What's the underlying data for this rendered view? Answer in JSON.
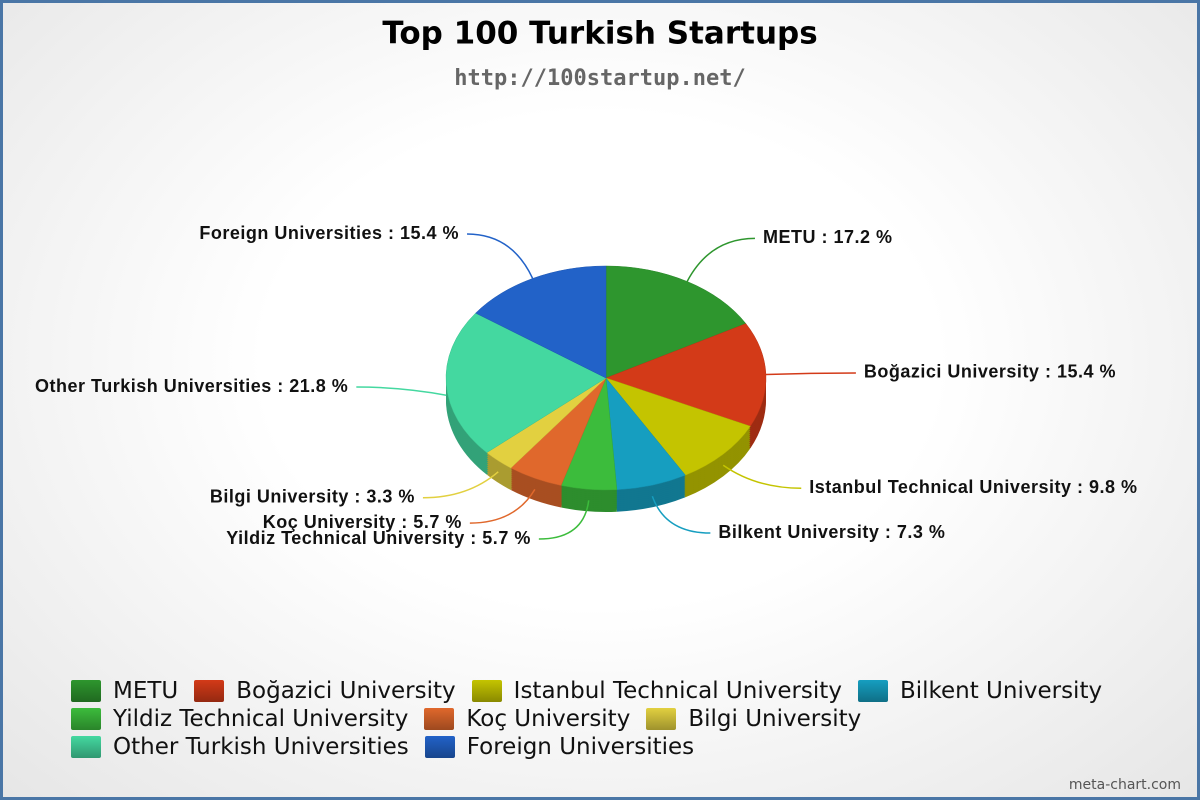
{
  "chart_data": {
    "type": "pie",
    "title": "Top 100 Turkish Startups",
    "subtitle": "http://100startup.net/",
    "categories": [
      "METU",
      "Boğazici University",
      "Istanbul Technical University",
      "Bilkent University",
      "Yildiz Technical University",
      "Koç University",
      "Bilgi University",
      "Other Turkish Universities",
      "Foreign Universities"
    ],
    "values": [
      17.2,
      15.4,
      9.8,
      7.3,
      5.7,
      5.7,
      3.3,
      21.8,
      15.4
    ],
    "value_labels": [
      "METU : 17.2 %",
      "Boğazici University : 15.4 %",
      "Istanbul Technical University : 9.8 %",
      "Bilkent University : 7.3 %",
      "Yildiz Technical University : 5.7 %",
      "Koç University : 5.7 %",
      "Bilgi University : 3.3 %",
      "Other Turkish Universities : 21.8 %",
      "Foreign Universities : 15.4 %"
    ],
    "colors": [
      "#2e962e",
      "#d33a18",
      "#c4c400",
      "#169ec0",
      "#3cbc3c",
      "#e0682c",
      "#e2d040",
      "#44d8a0",
      "#2262c8"
    ],
    "legend": "bottom",
    "watermark": "meta-chart.com"
  }
}
